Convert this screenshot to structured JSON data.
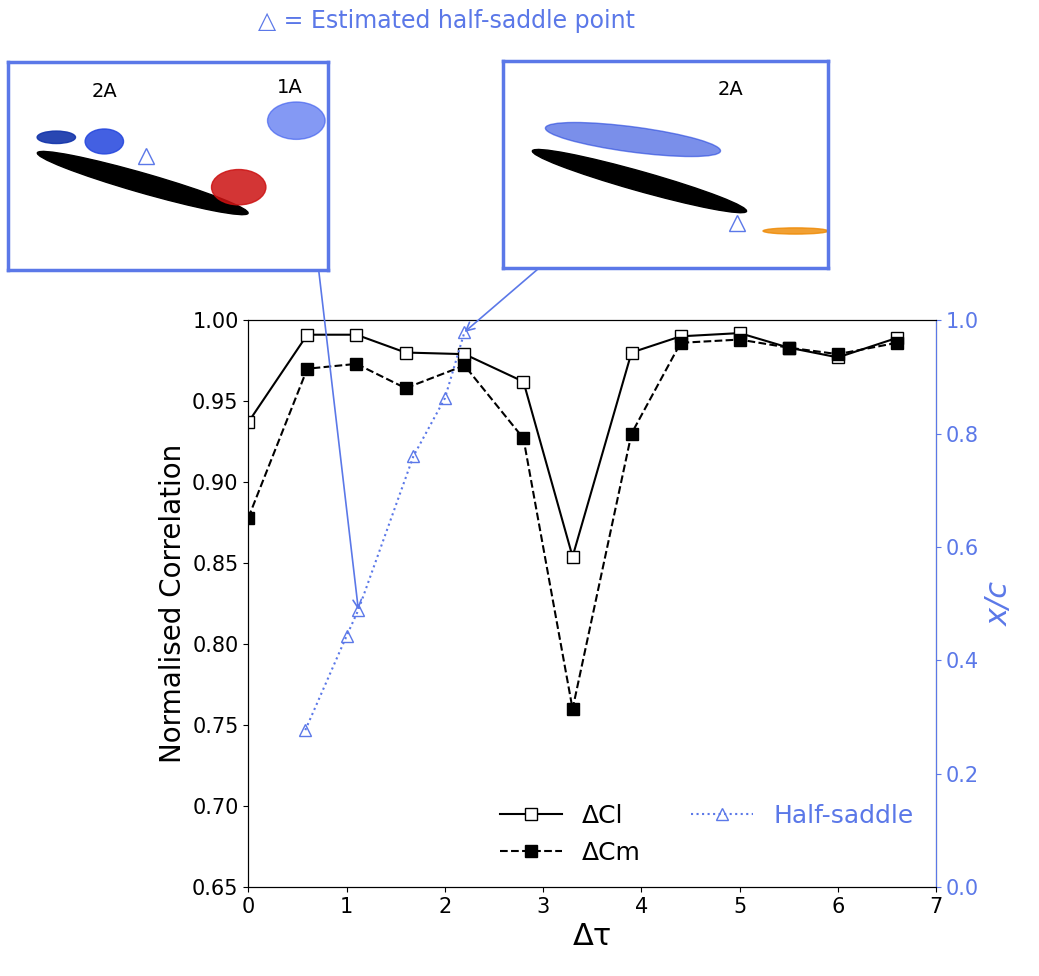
{
  "chart_data": {
    "type": "line",
    "x_label": "Δτ",
    "y_label": "Normalised Correlation",
    "y2_label": "x/c",
    "xlim": [
      0,
      7
    ],
    "xticks": [
      0,
      1,
      2,
      3,
      4,
      5,
      6,
      7
    ],
    "ylim": [
      0.65,
      1.0
    ],
    "yticks": [
      {
        "value": 0.65,
        "label": "0.65"
      },
      {
        "value": 0.7,
        "label": "0.70"
      },
      {
        "value": 0.75,
        "label": "0.75"
      },
      {
        "value": 0.8,
        "label": "0.80"
      },
      {
        "value": 0.85,
        "label": "0.85"
      },
      {
        "value": 0.9,
        "label": "0.90"
      },
      {
        "value": 0.95,
        "label": "0.95"
      },
      {
        "value": 1.0,
        "label": "1.00"
      }
    ],
    "y2lim": [
      0.0,
      1.0
    ],
    "y2ticks": [
      0.0,
      0.2,
      0.4,
      0.6,
      0.8,
      1.0
    ],
    "legend": "lower right",
    "series": [
      {
        "name": "ΔCl",
        "color": "#000000",
        "marker": "open_square",
        "line_style": "solid",
        "x": [
          0,
          0.6,
          1.1,
          1.6,
          2.2,
          2.8,
          3.3,
          3.9,
          4.4,
          5.0,
          5.5,
          6.0,
          6.6
        ],
        "values": [
          0.937,
          0.991,
          0.991,
          0.98,
          0.979,
          0.962,
          0.854,
          0.98,
          0.99,
          0.992,
          0.983,
          0.977,
          0.989
        ]
      },
      {
        "name": "ΔCm",
        "color": "#000000",
        "marker": "filled_square",
        "line_style": "dashed",
        "x": [
          0,
          0.6,
          1.1,
          1.6,
          2.2,
          2.8,
          3.3,
          3.9,
          4.4,
          5.0,
          5.5,
          6.0,
          6.6
        ],
        "values": [
          0.878,
          0.97,
          0.973,
          0.958,
          0.972,
          0.927,
          0.76,
          0.93,
          0.986,
          0.988,
          0.983,
          0.979,
          0.986
        ]
      },
      {
        "name": "Half-saddle",
        "color": "#5b78e8",
        "marker": "open_triangle",
        "line_style": "dotted",
        "axis": "y2",
        "x": [
          0.58,
          1.0,
          1.12,
          1.68,
          2.0,
          2.2
        ],
        "values": [
          0.277,
          0.443,
          0.489,
          0.76,
          0.862,
          0.979
        ]
      }
    ],
    "annotations": {
      "header": "△ = Estimated half-saddle point",
      "insets": [
        [
          "2A",
          "1A"
        ],
        [
          "2A"
        ]
      ]
    }
  }
}
